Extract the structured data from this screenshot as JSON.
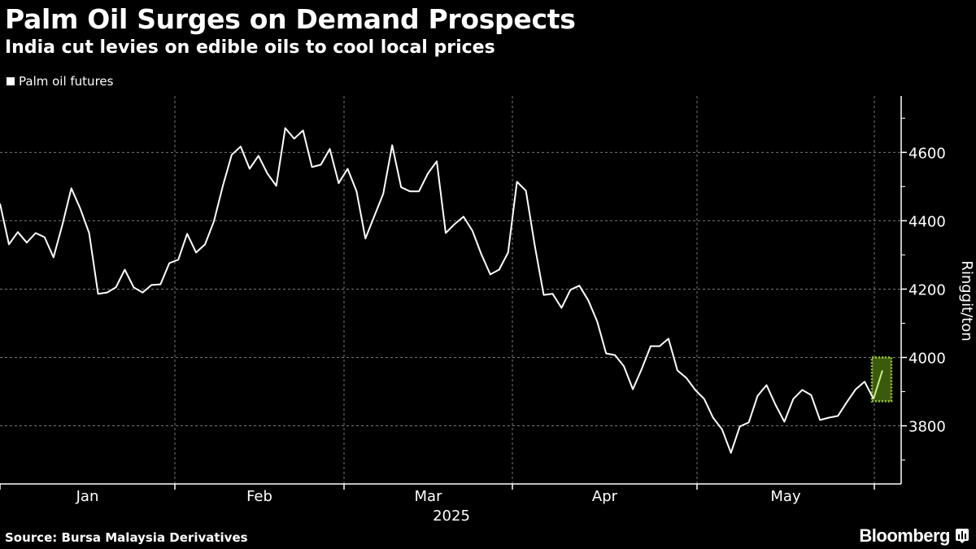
{
  "header": {
    "title": "Palm Oil Surges on Demand Prospects",
    "subtitle": "India cut levies on edible oils to cool local prices"
  },
  "footer": {
    "source": "Source: Bursa Malaysia Derivatives",
    "brand": "Bloomberg"
  },
  "colors": {
    "background": "#000000",
    "line": "#ffffff",
    "highlight_fill": "#3b5a0c",
    "highlight_border": "#9acd32",
    "highlight_line": "#c8f08a"
  },
  "chart_data": {
    "type": "line",
    "title": "Palm Oil Surges on Demand Prospects",
    "subtitle": "India cut levies on edible oils to cool local prices",
    "ylabel": "Ringgit/ton",
    "xlabel": "2025",
    "ylim": [
      3630,
      4765
    ],
    "yticks": [
      3800,
      4000,
      4200,
      4400,
      4600
    ],
    "xtick_labels": [
      "Jan",
      "Feb",
      "Mar",
      "Apr",
      "May"
    ],
    "grid": true,
    "legend": {
      "entries": [
        "Palm oil futures"
      ],
      "placement": "top-left"
    },
    "series": [
      {
        "name": "Palm oil futures",
        "values": [
          4450,
          4331,
          4367,
          4336,
          4364,
          4352,
          4293,
          4388,
          4495,
          4436,
          4364,
          4186,
          4190,
          4205,
          4257,
          4205,
          4190,
          4212,
          4214,
          4276,
          4286,
          4362,
          4307,
          4331,
          4398,
          4502,
          4593,
          4617,
          4552,
          4590,
          4538,
          4502,
          4671,
          4640,
          4664,
          4557,
          4564,
          4610,
          4510,
          4552,
          4486,
          4348,
          4414,
          4479,
          4621,
          4498,
          4486,
          4486,
          4538,
          4574,
          4364,
          4390,
          4412,
          4371,
          4302,
          4243,
          4257,
          4307,
          4514,
          4488,
          4326,
          4183,
          4186,
          4145,
          4198,
          4210,
          4167,
          4105,
          4012,
          4007,
          3974,
          3907,
          3967,
          4033,
          4033,
          4055,
          3962,
          3940,
          3905,
          3879,
          3824,
          3790,
          3721,
          3798,
          3810,
          3888,
          3919,
          3862,
          3812,
          3879,
          3905,
          3890,
          3817,
          3824,
          3829,
          3869,
          3907,
          3929,
          3879,
          3962
        ]
      }
    ],
    "highlight": {
      "description": "latest move highlighted",
      "from_value": 3879,
      "to_value": 3962
    }
  }
}
